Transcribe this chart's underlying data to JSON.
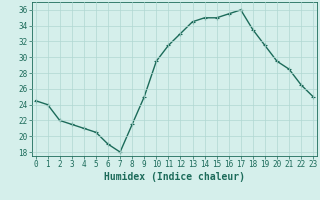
{
  "x": [
    0,
    1,
    2,
    3,
    4,
    5,
    6,
    7,
    8,
    9,
    10,
    11,
    12,
    13,
    14,
    15,
    16,
    17,
    18,
    19,
    20,
    21,
    22,
    23
  ],
  "y": [
    24.5,
    24.0,
    22.0,
    21.5,
    21.0,
    20.5,
    19.0,
    18.0,
    21.5,
    25.0,
    29.5,
    31.5,
    33.0,
    34.5,
    35.0,
    35.0,
    35.5,
    36.0,
    33.5,
    31.5,
    29.5,
    28.5,
    26.5,
    25.0
  ],
  "line_color": "#1c6b5a",
  "marker": "+",
  "markersize": 3.5,
  "linewidth": 1.0,
  "xlabel": "Humidex (Indice chaleur)",
  "xlabel_fontsize": 7,
  "xlabel_bold": true,
  "yticks": [
    18,
    20,
    22,
    24,
    26,
    28,
    30,
    32,
    34,
    36
  ],
  "xticks": [
    0,
    1,
    2,
    3,
    4,
    5,
    6,
    7,
    8,
    9,
    10,
    11,
    12,
    13,
    14,
    15,
    16,
    17,
    18,
    19,
    20,
    21,
    22,
    23
  ],
  "xlim": [
    -0.3,
    23.3
  ],
  "ylim": [
    17.5,
    37.0
  ],
  "bg_color": "#d5efeb",
  "grid_color": "#b0d8d2",
  "tick_fontsize": 5.5,
  "tick_color": "#1c6b5a",
  "spine_color": "#1c6b5a"
}
